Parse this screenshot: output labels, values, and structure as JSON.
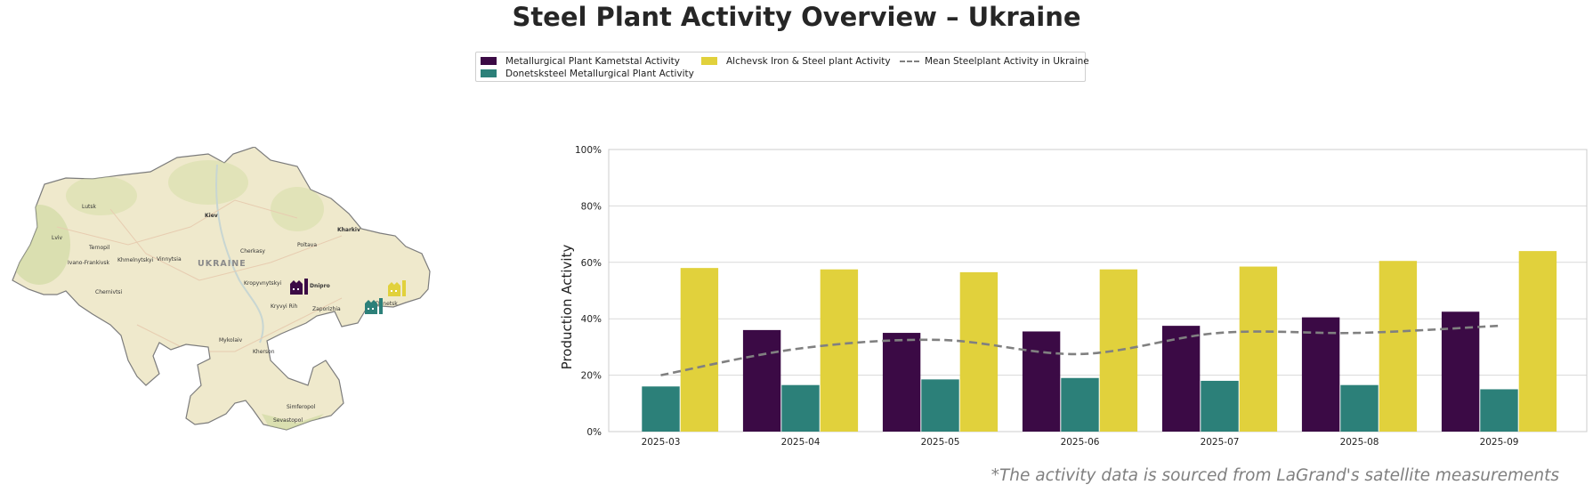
{
  "title": "Steel Plant Activity Overview – Ukraine",
  "source_note": "*The activity data is sourced from LaGrand's satellite measurements",
  "colors": {
    "kametstal": "#3b0a45",
    "donetsksteel": "#2c8079",
    "alchevsk": "#e1d13c",
    "mean": "#808080",
    "grid": "#d9d9d9"
  },
  "legend": [
    {
      "label": "Metallurgical Plant Kametstal Activity",
      "kind": "bar",
      "color": "#3b0a45"
    },
    {
      "label": "Donetsksteel Metallurgical Plant Activity",
      "kind": "bar",
      "color": "#2c8079"
    },
    {
      "label": "Alchevsk Iron & Steel plant Activity",
      "kind": "bar",
      "color": "#e1d13c"
    },
    {
      "label": "Mean Steelplant Activity in Ukraine",
      "kind": "dashed-line",
      "color": "#808080"
    }
  ],
  "map": {
    "country_label": "UKRAINE",
    "cities": [
      "Lutsk",
      "Kiev",
      "Kharkiv",
      "Lviv",
      "Ternopil",
      "Khmelnytskyi",
      "Vinnytsia",
      "Cherkasy",
      "Poltava",
      "Ivano-Frankivsk",
      "Chernivtsi",
      "Kropyvnytskyi",
      "Dnipro",
      "Kryvyi Rih",
      "Zaporizhia",
      "Donetsk",
      "Mykolaiv",
      "Kherson",
      "Simferopol",
      "Sevastopol"
    ],
    "plant_icons": [
      {
        "name": "kametstal-plant-icon",
        "color": "#3b0a45"
      },
      {
        "name": "donetsksteel-plant-icon",
        "color": "#2c8079"
      },
      {
        "name": "alchevsk-plant-icon",
        "color": "#e1d13c"
      }
    ]
  },
  "chart_data": {
    "type": "bar",
    "ylabel": "Production Activity",
    "xlabel": "",
    "ylim": [
      0,
      100
    ],
    "yticks": [
      "0%",
      "20%",
      "40%",
      "60%",
      "80%",
      "100%"
    ],
    "grid": "horizontal",
    "legend_position": "top-center",
    "categories": [
      "2025-03",
      "2025-04",
      "2025-05",
      "2025-06",
      "2025-07",
      "2025-08",
      "2025-09"
    ],
    "series": [
      {
        "name": "Metallurgical Plant Kametstal Activity",
        "type": "bar",
        "color": "#3b0a45",
        "values": [
          0,
          36,
          35,
          35.5,
          37.5,
          40.5,
          42.5
        ]
      },
      {
        "name": "Donetsksteel Metallurgical Plant Activity",
        "type": "bar",
        "color": "#2c8079",
        "values": [
          16,
          16.5,
          18.5,
          19,
          18,
          16.5,
          15
        ]
      },
      {
        "name": "Alchevsk Iron & Steel plant Activity",
        "type": "bar",
        "color": "#e1d13c",
        "values": [
          58,
          57.5,
          56.5,
          57.5,
          58.5,
          60.5,
          64
        ]
      },
      {
        "name": "Mean Steelplant Activity in Ukraine",
        "type": "line",
        "style": "dashed",
        "color": "#808080",
        "values": [
          20,
          29.5,
          32.5,
          27.5,
          35,
          35,
          37.5
        ]
      }
    ]
  }
}
